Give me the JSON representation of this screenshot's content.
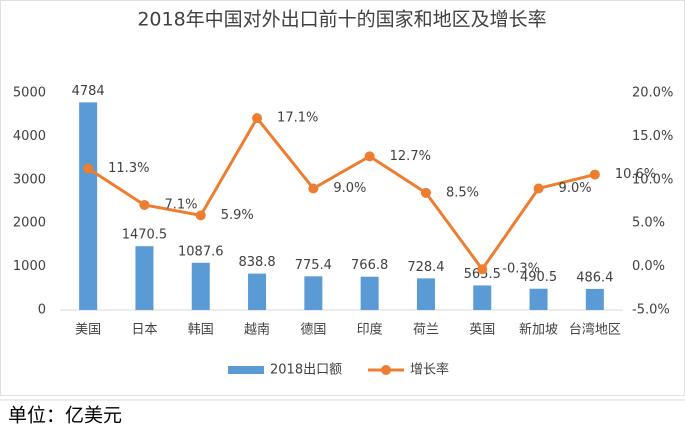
{
  "chart_data": {
    "type": "combo",
    "title": "2018年中国对外出口前十的国家和地区及增长率",
    "categories": [
      "美国",
      "日本",
      "韩国",
      "越南",
      "德国",
      "印度",
      "荷兰",
      "英国",
      "新加坡",
      "台湾地区"
    ],
    "series": [
      {
        "name": "2018出口额",
        "type": "bar",
        "color": "#5b9bd5",
        "values": [
          4784,
          1470.5,
          1087.6,
          838.8,
          775.4,
          766.8,
          728.4,
          565.5,
          490.5,
          486.4
        ]
      },
      {
        "name": "增长率",
        "type": "line",
        "axis": "y2",
        "color": "#ed7d31",
        "values": [
          11.3,
          7.1,
          5.9,
          17.1,
          9.0,
          12.7,
          8.5,
          -0.3,
          9.0,
          10.6
        ],
        "value_labels": [
          "11.3%",
          "7.1%",
          "5.9%",
          "17.1%",
          "9.0%",
          "12.7%",
          "8.5%",
          "-0.3%",
          "9.0%",
          "10.6%"
        ]
      }
    ],
    "ylim": [
      0,
      5000
    ],
    "yticks": [
      0,
      1000,
      2000,
      3000,
      4000,
      5000
    ],
    "y2lim": [
      -5,
      20
    ],
    "y2ticks": [
      {
        "value": -5,
        "label": "-5.0%"
      },
      {
        "value": 0,
        "label": "0.0%"
      },
      {
        "value": 5,
        "label": "5.0%"
      },
      {
        "value": 10,
        "label": "10.0%"
      },
      {
        "value": 15,
        "label": "15.0%"
      },
      {
        "value": 20,
        "label": "20.0%"
      }
    ],
    "legend": "bottom"
  },
  "footer": "单位：亿美元"
}
